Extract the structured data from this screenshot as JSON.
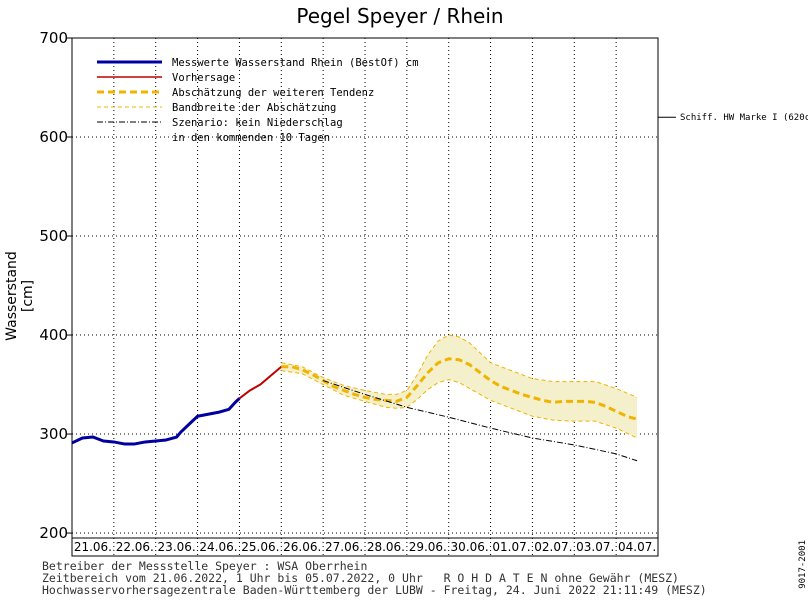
{
  "chart_data": {
    "type": "line",
    "title": "Pegel Speyer / Rhein",
    "ylabel": "Wasserstand [cm]",
    "ylim": [
      195,
      700
    ],
    "yticks": [
      200,
      300,
      400,
      500,
      600,
      700
    ],
    "x_start": "21.06.",
    "x_days": 14,
    "x_tick_labels": [
      "21.06.",
      "22.06.",
      "23.06.",
      "24.06.",
      "25.06.",
      "26.06.",
      "27.06.",
      "28.06.",
      "29.06.",
      "30.06.",
      "01.07.",
      "02.07.",
      "03.07.",
      "04.07."
    ],
    "grid": true,
    "legend": {
      "placement": "top-left",
      "entries": [
        "Messwerte Wasserstand Rhein (BestOf)  cm",
        "Vorhersage",
        "Abschätzung der weiteren Tendenz",
        "Bandbreite der Abschätzung",
        "Szenario: kein Niederschlag",
        "in den kommenden 10 Tagen"
      ]
    },
    "reference_line": {
      "label": "Schiff. HW Marke I (620c",
      "value": 620
    },
    "series": [
      {
        "name": "Messwerte Wasserstand Rhein (BestOf)  cm",
        "color": "#0000a0",
        "x": [
          0.0,
          0.25,
          0.5,
          0.75,
          1.0,
          1.25,
          1.5,
          1.75,
          2.0,
          2.25,
          2.5,
          2.6,
          2.8,
          3.0,
          3.25,
          3.5,
          3.75,
          3.9,
          4.0
        ],
        "y": [
          291,
          296,
          297,
          293,
          292,
          290,
          290,
          292,
          293,
          294,
          297,
          302,
          310,
          318,
          320,
          322,
          325,
          332,
          336
        ]
      },
      {
        "name": "Vorhersage",
        "color": "#c00000",
        "x": [
          4.0,
          4.25,
          4.5,
          4.75,
          5.0
        ],
        "y": [
          336,
          344,
          350,
          359,
          368
        ]
      },
      {
        "name": "Abschätzung der weiteren Tendenz",
        "color": "#f0b400",
        "x": [
          5.0,
          5.25,
          5.5,
          5.75,
          6.0,
          6.25,
          6.5,
          6.75,
          7.0,
          7.25,
          7.5,
          7.75,
          8.0,
          8.25,
          8.5,
          8.75,
          9.0,
          9.25,
          9.5,
          9.75,
          10.0,
          10.25,
          10.5,
          10.75,
          11.0,
          11.25,
          11.5,
          11.75,
          12.0,
          12.25,
          12.5,
          12.75,
          13.0,
          13.25,
          13.5
        ],
        "y": [
          368,
          368,
          365,
          360,
          354,
          348,
          344,
          340,
          337,
          335,
          334,
          333,
          337,
          349,
          362,
          372,
          376,
          375,
          370,
          362,
          354,
          348,
          344,
          340,
          337,
          334,
          332,
          333,
          333,
          333,
          332,
          328,
          323,
          318,
          315
        ]
      },
      {
        "name": "Szenario: kein Niederschlag",
        "color": "#000000",
        "x": [
          6.0,
          7.0,
          8.0,
          9.0,
          10.0,
          11.0,
          12.0,
          13.0,
          13.5
        ],
        "y": [
          354,
          340,
          327,
          317,
          306,
          296,
          289,
          280,
          273
        ]
      }
    ],
    "band": {
      "name": "Bandbreite der Abschätzung",
      "color": "#f0b400",
      "fill": "#f5f0cc",
      "x": [
        5.0,
        5.5,
        6.0,
        6.5,
        7.0,
        7.5,
        7.75,
        8.0,
        8.25,
        8.5,
        8.75,
        9.0,
        9.25,
        9.5,
        9.75,
        10.0,
        10.5,
        11.0,
        11.5,
        12.0,
        12.5,
        13.0,
        13.5
      ],
      "upper": [
        372,
        368,
        357,
        349,
        344,
        340,
        340,
        344,
        360,
        380,
        394,
        400,
        398,
        392,
        382,
        372,
        364,
        356,
        353,
        353,
        353,
        346,
        337
      ],
      "lower": [
        364,
        361,
        350,
        339,
        333,
        327,
        326,
        327,
        335,
        345,
        352,
        355,
        352,
        346,
        340,
        334,
        326,
        318,
        314,
        313,
        313,
        306,
        296
      ]
    }
  },
  "footer": {
    "line1": "Betreiber der Messstelle Speyer : WSA Oberrhein",
    "line2": "Zeitbereich vom 21.06.2022, 1 Uhr bis 05.07.2022, 0 Uhr   R O H D A T E N ohne Gewähr (MESZ)",
    "line3": "Hochwasservorhersagezentrale Baden-Württemberg der LUBW - Freitag, 24. Juni 2022 21:11:49 (MESZ)"
  },
  "code": "9017-2001"
}
